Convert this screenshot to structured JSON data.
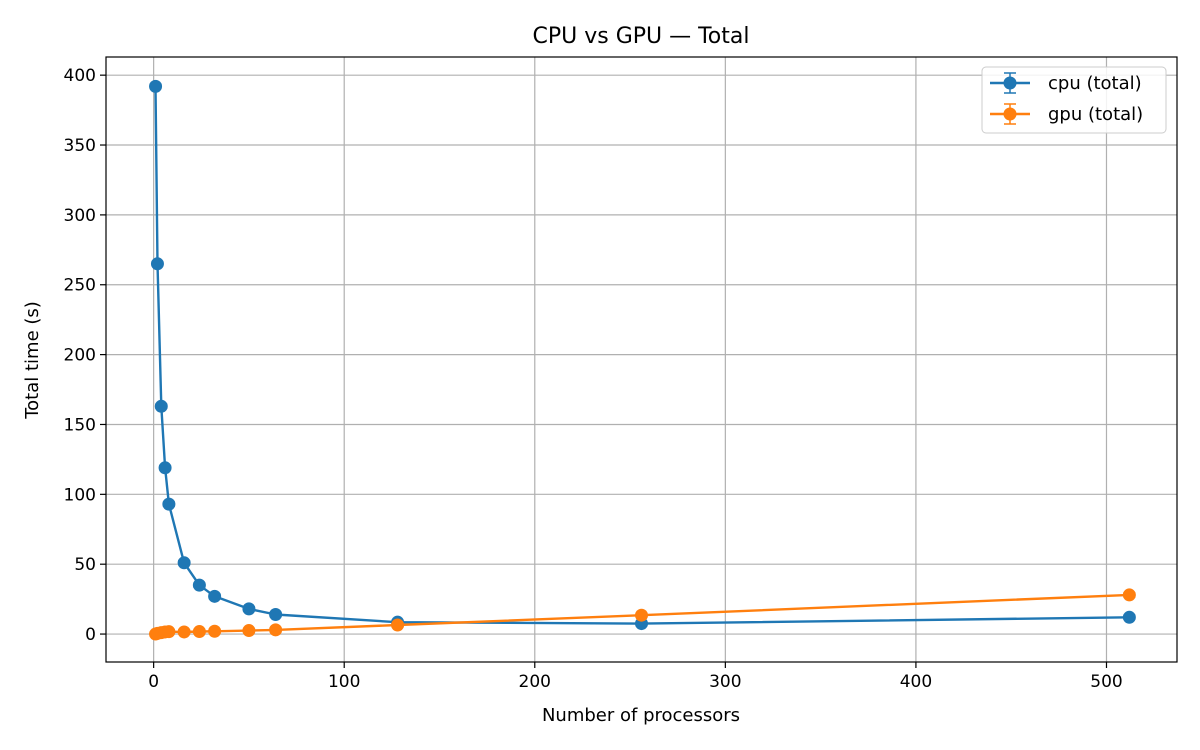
{
  "chart_data": {
    "type": "line",
    "title": "CPU vs GPU — Total",
    "xlabel": "Number of processors",
    "ylabel": "Total time (s)",
    "xlim": [
      -25,
      537
    ],
    "ylim": [
      -20,
      413
    ],
    "xticks": [
      0,
      100,
      200,
      300,
      400,
      500
    ],
    "yticks": [
      0,
      50,
      100,
      150,
      200,
      250,
      300,
      350,
      400
    ],
    "grid": true,
    "legend_position": "top-right",
    "series": [
      {
        "name": "cpu (total)",
        "color": "#1f77b4",
        "error_bars": true,
        "x": [
          1,
          2,
          4,
          6,
          8,
          16,
          24,
          32,
          50,
          64,
          128,
          256,
          512
        ],
        "y": [
          392,
          265,
          163,
          119,
          93,
          51,
          35,
          27,
          18,
          14,
          8.5,
          7.5,
          12
        ]
      },
      {
        "name": "gpu (total)",
        "color": "#ff7f0e",
        "error_bars": true,
        "x": [
          1,
          2,
          4,
          6,
          8,
          16,
          24,
          32,
          50,
          64,
          128,
          256,
          512
        ],
        "y": [
          0,
          0.5,
          1,
          1.5,
          1.7,
          1.5,
          1.8,
          2,
          2.5,
          3,
          6.5,
          13.5,
          28
        ]
      }
    ]
  }
}
